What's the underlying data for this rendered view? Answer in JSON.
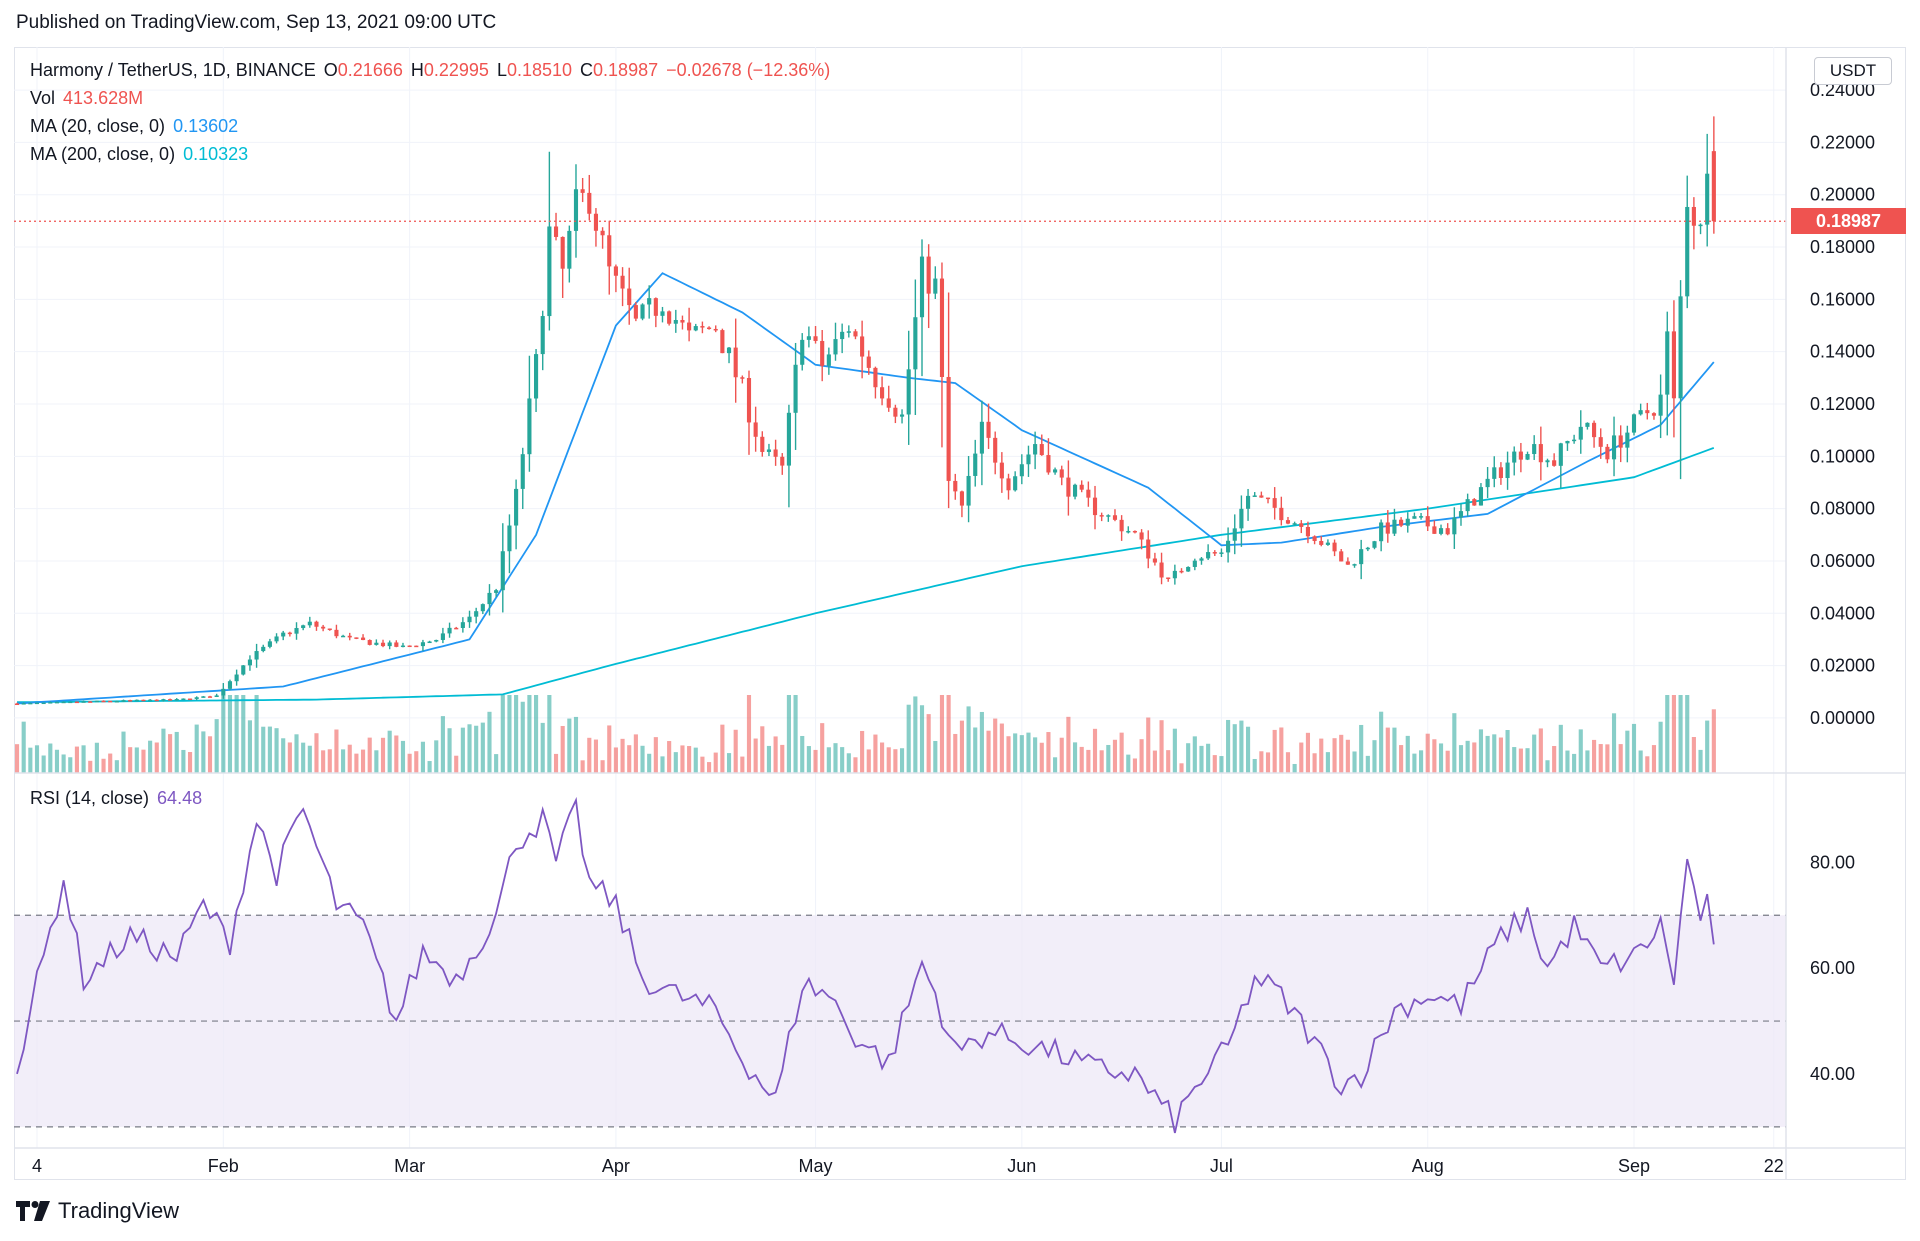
{
  "header": {
    "published": "Published on TradingView.com, Sep 13, 2021 09:00 UTC"
  },
  "legend": {
    "symbol": "Harmony / TetherUS, 1D, BINANCE",
    "o_label": "O",
    "o_value": "0.21666",
    "h_label": "H",
    "h_value": "0.22995",
    "l_label": "L",
    "l_value": "0.18510",
    "c_label": "C",
    "c_value": "0.18987",
    "change": "−0.02678 (−12.36%)",
    "vol_label": "Vol",
    "vol_value": "413.628M",
    "ma20_label": "MA (20, close, 0)",
    "ma20_value": "0.13602",
    "ma200_label": "MA (200, close, 0)",
    "ma200_value": "0.10323",
    "rsi_label": "RSI (14, close)",
    "rsi_value": "64.48"
  },
  "price_axis": {
    "unit": "USDT",
    "last_price": "0.18987"
  },
  "brand": {
    "name": "TradingView"
  },
  "colors": {
    "up": "#26a69a",
    "down": "#ef5350",
    "ma20": "#2196f3",
    "ma200": "#00bcd4",
    "rsi": "#7e57c2",
    "rsi_band": "#ede7f6"
  },
  "chart_data": [
    {
      "type": "candlestick",
      "title": "Harmony / TetherUS, 1D, BINANCE",
      "ylim": [
        -0.018,
        0.245
      ],
      "y_ticks": [
        "0.24000",
        "0.22000",
        "0.20000",
        "0.18000",
        "0.16000",
        "0.14000",
        "0.12000",
        "0.10000",
        "0.08000",
        "0.06000",
        "0.04000",
        "0.02000",
        "0.00000"
      ],
      "y_tick_values": [
        0.24,
        0.22,
        0.2,
        0.18,
        0.16,
        0.14,
        0.12,
        0.1,
        0.08,
        0.06,
        0.04,
        0.02,
        0.0
      ],
      "x_ticks": [
        "4",
        "Feb",
        "Mar",
        "Apr",
        "May",
        "Jun",
        "Jul",
        "Aug",
        "Sep",
        "22"
      ],
      "x_tick_dates": [
        "2021-01-04",
        "2021-02-01",
        "2021-03-01",
        "2021-04-01",
        "2021-05-01",
        "2021-06-01",
        "2021-07-01",
        "2021-08-01",
        "2021-09-01",
        "2021-09-22"
      ],
      "start_date": "2021-01-01",
      "close_anchors": [
        [
          "2021-01-01",
          0.0055
        ],
        [
          "2021-01-15",
          0.0065
        ],
        [
          "2021-01-25",
          0.007
        ],
        [
          "2021-01-31",
          0.0085
        ],
        [
          "2021-02-05",
          0.023
        ],
        [
          "2021-02-10",
          0.032
        ],
        [
          "2021-02-14",
          0.036
        ],
        [
          "2021-02-20",
          0.03
        ],
        [
          "2021-02-28",
          0.027
        ],
        [
          "2021-03-05",
          0.03
        ],
        [
          "2021-03-10",
          0.038
        ],
        [
          "2021-03-14",
          0.05
        ],
        [
          "2021-03-17",
          0.085
        ],
        [
          "2021-03-20",
          0.135
        ],
        [
          "2021-03-22",
          0.185
        ],
        [
          "2021-03-24",
          0.17
        ],
        [
          "2021-03-26",
          0.195
        ],
        [
          "2021-03-28",
          0.2
        ],
        [
          "2021-03-31",
          0.17
        ],
        [
          "2021-04-04",
          0.15
        ],
        [
          "2021-04-08",
          0.16
        ],
        [
          "2021-04-12",
          0.145
        ],
        [
          "2021-04-16",
          0.15
        ],
        [
          "2021-04-20",
          0.125
        ],
        [
          "2021-04-23",
          0.102
        ],
        [
          "2021-04-26",
          0.095
        ],
        [
          "2021-04-29",
          0.15
        ],
        [
          "2021-05-02",
          0.135
        ],
        [
          "2021-05-06",
          0.15
        ],
        [
          "2021-05-10",
          0.13
        ],
        [
          "2021-05-14",
          0.115
        ],
        [
          "2021-05-17",
          0.17
        ],
        [
          "2021-05-19",
          0.165
        ],
        [
          "2021-05-21",
          0.09
        ],
        [
          "2021-05-23",
          0.08
        ],
        [
          "2021-05-26",
          0.11
        ],
        [
          "2021-05-30",
          0.09
        ],
        [
          "2021-06-03",
          0.105
        ],
        [
          "2021-06-07",
          0.09
        ],
        [
          "2021-06-12",
          0.08
        ],
        [
          "2021-06-18",
          0.07
        ],
        [
          "2021-06-23",
          0.052
        ],
        [
          "2021-06-27",
          0.062
        ],
        [
          "2021-07-01",
          0.063
        ],
        [
          "2021-07-05",
          0.085
        ],
        [
          "2021-07-09",
          0.08
        ],
        [
          "2021-07-14",
          0.072
        ],
        [
          "2021-07-20",
          0.058
        ],
        [
          "2021-07-25",
          0.072
        ],
        [
          "2021-07-30",
          0.075
        ],
        [
          "2021-08-04",
          0.072
        ],
        [
          "2021-08-10",
          0.09
        ],
        [
          "2021-08-16",
          0.105
        ],
        [
          "2021-08-20",
          0.098
        ],
        [
          "2021-08-24",
          0.112
        ],
        [
          "2021-08-28",
          0.102
        ],
        [
          "2021-09-01",
          0.112
        ],
        [
          "2021-09-05",
          0.122
        ],
        [
          "2021-09-06",
          0.145
        ],
        [
          "2021-09-07",
          0.12
        ],
        [
          "2021-09-08",
          0.16
        ],
        [
          "2021-09-09",
          0.2
        ],
        [
          "2021-09-11",
          0.185
        ],
        [
          "2021-09-12",
          0.2167
        ],
        [
          "2021-09-13",
          0.18987
        ]
      ],
      "last_candle": {
        "date": "2021-09-13",
        "open": 0.21666,
        "high": 0.22995,
        "low": 0.1851,
        "close": 0.18987
      },
      "last_price": 0.18987,
      "series": [
        {
          "name": "MA (20, close, 0)",
          "last": 0.13602,
          "anchors": [
            [
              "2021-01-01",
              0.0055
            ],
            [
              "2021-02-10",
              0.012
            ],
            [
              "2021-03-10",
              0.03
            ],
            [
              "2021-03-20",
              0.07
            ],
            [
              "2021-04-01",
              0.15
            ],
            [
              "2021-04-08",
              0.17
            ],
            [
              "2021-04-20",
              0.155
            ],
            [
              "2021-05-01",
              0.135
            ],
            [
              "2021-05-15",
              0.13
            ],
            [
              "2021-05-22",
              0.128
            ],
            [
              "2021-06-01",
              0.11
            ],
            [
              "2021-06-20",
              0.088
            ],
            [
              "2021-07-01",
              0.066
            ],
            [
              "2021-07-10",
              0.067
            ],
            [
              "2021-07-25",
              0.073
            ],
            [
              "2021-08-10",
              0.078
            ],
            [
              "2021-08-25",
              0.098
            ],
            [
              "2021-09-05",
              0.112
            ],
            [
              "2021-09-13",
              0.13602
            ]
          ]
        },
        {
          "name": "MA (200, close, 0)",
          "last": 0.10323,
          "anchors": [
            [
              "2021-01-01",
              0.006
            ],
            [
              "2021-02-15",
              0.007
            ],
            [
              "2021-03-15",
              0.009
            ],
            [
              "2021-03-31",
              0.02
            ],
            [
              "2021-05-01",
              0.04
            ],
            [
              "2021-06-01",
              0.058
            ],
            [
              "2021-07-01",
              0.07
            ],
            [
              "2021-08-01",
              0.08
            ],
            [
              "2021-09-01",
              0.092
            ],
            [
              "2021-09-13",
              0.10323
            ]
          ]
        }
      ]
    },
    {
      "type": "line",
      "title": "RSI (14, close)",
      "ylim": [
        26,
        95
      ],
      "y_ticks": [
        "80.00",
        "60.00",
        "40.00"
      ],
      "y_tick_values": [
        80,
        60,
        40
      ],
      "bands": [
        70,
        50,
        30
      ],
      "last": 64.48,
      "anchors": [
        [
          "2021-01-01",
          40
        ],
        [
          "2021-01-03",
          52
        ],
        [
          "2021-01-08",
          77
        ],
        [
          "2021-01-11",
          58
        ],
        [
          "2021-01-18",
          66
        ],
        [
          "2021-01-25",
          62
        ],
        [
          "2021-01-29",
          72
        ],
        [
          "2021-02-02",
          65
        ],
        [
          "2021-02-06",
          88
        ],
        [
          "2021-02-09",
          78
        ],
        [
          "2021-02-13",
          90
        ],
        [
          "2021-02-18",
          72
        ],
        [
          "2021-02-22",
          68
        ],
        [
          "2021-02-27",
          50
        ],
        [
          "2021-03-03",
          63
        ],
        [
          "2021-03-08",
          58
        ],
        [
          "2021-03-14",
          70
        ],
        [
          "2021-03-17",
          84
        ],
        [
          "2021-03-21",
          88
        ],
        [
          "2021-03-23",
          80
        ],
        [
          "2021-03-26",
          90
        ],
        [
          "2021-03-28",
          76
        ],
        [
          "2021-04-01",
          72
        ],
        [
          "2021-04-05",
          58
        ],
        [
          "2021-04-10",
          55
        ],
        [
          "2021-04-16",
          52
        ],
        [
          "2021-04-20",
          43
        ],
        [
          "2021-04-25",
          35
        ],
        [
          "2021-04-29",
          57
        ],
        [
          "2021-05-03",
          55
        ],
        [
          "2021-05-07",
          47
        ],
        [
          "2021-05-12",
          42
        ],
        [
          "2021-05-17",
          61
        ],
        [
          "2021-05-19",
          55
        ],
        [
          "2021-05-22",
          44
        ],
        [
          "2021-05-27",
          48
        ],
        [
          "2021-06-01",
          46
        ],
        [
          "2021-06-06",
          44
        ],
        [
          "2021-06-12",
          41
        ],
        [
          "2021-06-18",
          40
        ],
        [
          "2021-06-24",
          31
        ],
        [
          "2021-06-28",
          39
        ],
        [
          "2021-07-02",
          45
        ],
        [
          "2021-07-06",
          58
        ],
        [
          "2021-07-09",
          56
        ],
        [
          "2021-07-14",
          48
        ],
        [
          "2021-07-19",
          38
        ],
        [
          "2021-07-22",
          40
        ],
        [
          "2021-07-27",
          52
        ],
        [
          "2021-08-01",
          55
        ],
        [
          "2021-08-06",
          53
        ],
        [
          "2021-08-12",
          66
        ],
        [
          "2021-08-16",
          70
        ],
        [
          "2021-08-19",
          60
        ],
        [
          "2021-08-23",
          68
        ],
        [
          "2021-08-27",
          60
        ],
        [
          "2021-09-01",
          62
        ],
        [
          "2021-09-05",
          68
        ],
        [
          "2021-09-07",
          58
        ],
        [
          "2021-09-09",
          80
        ],
        [
          "2021-09-11",
          70
        ],
        [
          "2021-09-12",
          72
        ],
        [
          "2021-09-13",
          64.48
        ]
      ]
    }
  ]
}
